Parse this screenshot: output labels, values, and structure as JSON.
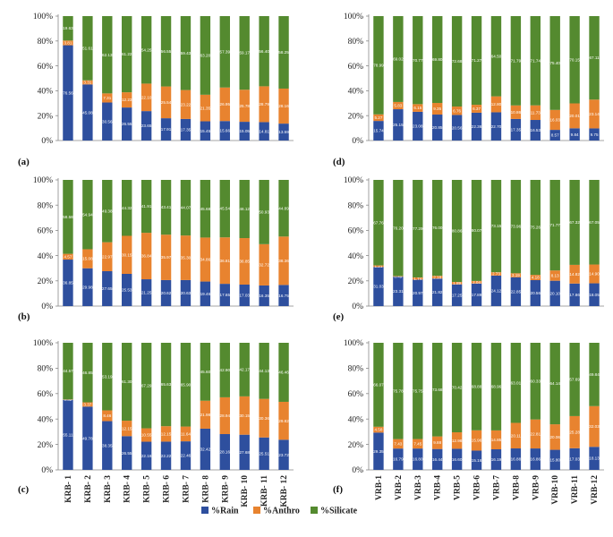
{
  "colors": {
    "rain": "#2E4F9E",
    "anthro": "#E8832F",
    "silicate": "#548A2F",
    "axis": "#888888",
    "grid": "#dddddd"
  },
  "legend": [
    {
      "name": "%Rain",
      "color": "#2E4F9E"
    },
    {
      "name": "%Anthro",
      "color": "#E8832F"
    },
    {
      "name": "%Silicate",
      "color": "#548A2F"
    }
  ],
  "chart_data": [
    {
      "panel": "(a)",
      "type": "bar",
      "stacked": true,
      "ylim": [
        0,
        100
      ],
      "yticks": [
        "0%",
        "20%",
        "40%",
        "60%",
        "80%",
        "100%"
      ],
      "categories": [
        "KRB- 1",
        "KRB- 2",
        "KRB- 3",
        "KRB- 4",
        "KRB- 5",
        "KRB- 6",
        "KRB- 7",
        "KRB- 8",
        "KRB- 9",
        "KRB- 10",
        "KRB- 11",
        "KRB- 12"
      ],
      "series": [
        {
          "name": "%Rain",
          "values": [
            76.56,
            45.08,
            30.56,
            26.55,
            23.65,
            17.91,
            17.35,
            15.45,
            15.66,
            15.05,
            14.81,
            13.59
          ]
        },
        {
          "name": "%Anthro",
          "values": [
            3.81,
            3.31,
            7.31,
            12.23,
            22.1,
            25.54,
            23.22,
            21.35,
            26.95,
            25.78,
            28.79,
            28.16
          ]
        },
        {
          "name": "%Silicate",
          "values": [
            19.63,
            51.61,
            62.13,
            61.22,
            54.25,
            56.55,
            59.43,
            63.2,
            57.39,
            59.17,
            56.4,
            58.25
          ]
        }
      ]
    },
    {
      "panel": "(b)",
      "type": "bar",
      "stacked": true,
      "ylim": [
        0,
        100
      ],
      "yticks": [
        "0%",
        "20%",
        "40%",
        "60%",
        "80%",
        "100%"
      ],
      "categories": [
        "KRB- 1",
        "KRB- 2",
        "KRB- 3",
        "KRB- 4",
        "KRB- 5",
        "KRB- 6",
        "KRB- 7",
        "KRB- 8",
        "KRB- 9",
        "KRB- 10",
        "KRB- 11",
        "KRB- 12"
      ],
      "series": [
        {
          "name": "%Rain",
          "values": [
            36.85,
            29.98,
            27.65,
            25.53,
            21.25,
            20.62,
            20.63,
            19.46,
            17.65,
            17.03,
            16.35,
            16.75
          ]
        },
        {
          "name": "%Anthro",
          "values": [
            4.57,
            15.08,
            22.97,
            30.15,
            36.84,
            35.97,
            35.3,
            34.86,
            36.81,
            36.85,
            32.72,
            38.36
          ]
        },
        {
          "name": "%Silicate",
          "values": [
            58.58,
            54.94,
            49.38,
            44.32,
            41.91,
            43.41,
            44.07,
            45.68,
            45.54,
            46.12,
            50.93,
            44.89
          ]
        }
      ]
    },
    {
      "panel": "(c)",
      "type": "bar",
      "stacked": true,
      "ylim": [
        0,
        100
      ],
      "yticks": [
        "0%",
        "20%",
        "40%",
        "60%",
        "80%",
        "100%"
      ],
      "categories": [
        "KRB- 1",
        "KRB- 2",
        "KRB- 3",
        "KRB- 4",
        "KRB- 5",
        "KRB- 6",
        "KRB- 7",
        "KRB- 8",
        "KRB- 9",
        "KRB- 10",
        "KRB- 11",
        "KRB- 12"
      ],
      "series": [
        {
          "name": "%Rain",
          "values": [
            55.11,
            49.78,
            38.35,
            26.55,
            22.16,
            22.22,
            22.46,
            32.42,
            28.16,
            27.68,
            25.51,
            23.72
          ]
        },
        {
          "name": "%Anthro",
          "values": [
            0.32,
            3.37,
            8.46,
            12.15,
            10.55,
            12.15,
            11.64,
            21.98,
            28.94,
            30.15,
            30.36,
            29.82
          ]
        },
        {
          "name": "%Silicate",
          "values": [
            44.57,
            46.85,
            53.19,
            61.3,
            67.29,
            65.63,
            65.9,
            45.6,
            42.9,
            42.17,
            44.13,
            46.46
          ]
        }
      ]
    },
    {
      "panel": "(d)",
      "type": "bar",
      "stacked": true,
      "ylim": [
        0,
        100
      ],
      "yticks": [
        "0%",
        "20%",
        "40%",
        "60%",
        "80%",
        "100%"
      ],
      "categories": [
        "VRB-1",
        "VRB-2",
        "VRB-3",
        "VRB-4",
        "VRB-5",
        "VRB-6",
        "VRB-7",
        "VRB-8",
        "VRB-9",
        "VRB-10",
        "VRB-11",
        "VRB-12"
      ],
      "series": [
        {
          "name": "%Rain",
          "values": [
            15.74,
            25.15,
            23.08,
            20.85,
            20.56,
            22.36,
            22.7,
            17.35,
            16.53,
            8.57,
            9.84,
            9.75
          ]
        },
        {
          "name": "%Anthro",
          "values": [
            5.27,
            5.83,
            6.15,
            9.35,
            6.76,
            6.37,
            12.8,
            10.86,
            11.73,
            16.03,
            20.01,
            23.14
          ]
        },
        {
          "name": "%Silicate",
          "values": [
            78.99,
            69.02,
            70.77,
            69.8,
            72.68,
            71.27,
            64.5,
            71.79,
            71.74,
            75.4,
            70.15,
            67.11
          ]
        }
      ]
    },
    {
      "panel": "(e)",
      "type": "bar",
      "stacked": true,
      "ylim": [
        0,
        100
      ],
      "yticks": [
        "0%",
        "20%",
        "40%",
        "60%",
        "80%",
        "100%"
      ],
      "categories": [
        "VRB-1",
        "VRB-2",
        "VRB-3",
        "VRB-4",
        "VRB-5",
        "VRB-6",
        "VRB-7",
        "VRB-8",
        "VRB-9",
        "VRB-10",
        "VRB-11",
        "VRB-12"
      ],
      "series": [
        {
          "name": "%Rain",
          "values": [
            31.03,
            23.31,
            20.97,
            21.82,
            17.25,
            17.89,
            24.12,
            22.85,
            20.56,
            20.1,
            17.86,
            18.05
          ]
        },
        {
          "name": "%Anthro",
          "values": [
            1.21,
            0.49,
            1.74,
            2.18,
            1.89,
            2.04,
            2.73,
            3.19,
            4.18,
            8.13,
            14.82,
            14.9
          ]
        },
        {
          "name": "%Silicate",
          "values": [
            67.76,
            76.2,
            77.29,
            76.0,
            80.86,
            80.07,
            73.15,
            73.96,
            75.26,
            71.77,
            67.32,
            67.05
          ]
        }
      ]
    },
    {
      "panel": "(f)",
      "type": "bar",
      "stacked": true,
      "ylim": [
        0,
        100
      ],
      "yticks": [
        "0%",
        "20%",
        "40%",
        "60%",
        "80%",
        "100%"
      ],
      "categories": [
        "VRB-1",
        "VRB-2",
        "VRB-3",
        "VRB-4",
        "VRB-5",
        "VRB-6",
        "VRB-7",
        "VRB-8",
        "VRB-9",
        "VRB-10",
        "VRB-11",
        "VRB-12"
      ],
      "series": [
        {
          "name": "%Rain",
          "values": [
            29.35,
            16.79,
            16.8,
            16.44,
            16.6,
            15.16,
            16.19,
            16.88,
            16.86,
            15.8,
            17.03,
            18.13
          ]
        },
        {
          "name": "%Anthro",
          "values": [
            4.58,
            7.43,
            7.45,
            9.88,
            12.98,
            15.96,
            14.85,
            20.11,
            22.81,
            20.06,
            25.28,
            32.03
          ]
        },
        {
          "name": "%Silicate",
          "values": [
            66.07,
            75.78,
            75.75,
            73.68,
            70.42,
            68.88,
            68.96,
            63.01,
            60.33,
            64.14,
            57.69,
            49.84
          ]
        }
      ]
    }
  ]
}
